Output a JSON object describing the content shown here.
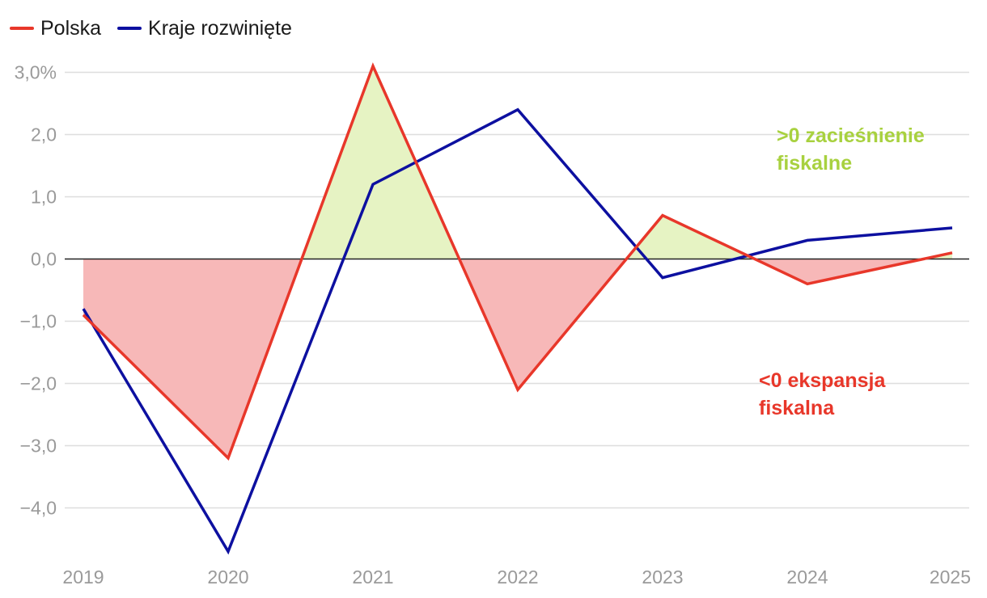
{
  "legend": [
    {
      "label": "Polska",
      "color": "#e8372a"
    },
    {
      "label": "Kraje rozwinięte",
      "color": "#0d10a0"
    }
  ],
  "chart_data": {
    "type": "line",
    "title": "",
    "xlabel": "",
    "ylabel": "",
    "x": [
      "2019",
      "2020",
      "2021",
      "2022",
      "2023",
      "2024",
      "2025"
    ],
    "series": [
      {
        "name": "Polska",
        "color": "#e8372a",
        "values": [
          -0.9,
          -3.2,
          3.1,
          -2.1,
          0.7,
          -0.4,
          0.1
        ]
      },
      {
        "name": "Kraje rozwinięte",
        "color": "#0d10a0",
        "values": [
          -0.8,
          -4.7,
          1.2,
          2.4,
          -0.3,
          0.3,
          0.5
        ]
      }
    ],
    "fill_between_zero_for": "Polska",
    "fill_colors": {
      "positive": "#e6f3c3",
      "negative": "#f7b8b8"
    },
    "ylim": [
      -4.8,
      3.1
    ],
    "yticks": [
      3,
      2,
      1,
      0,
      -1,
      -2,
      -3,
      -4
    ],
    "ytick_labels": [
      "3,0%",
      "2,0",
      "1,0",
      "0,0",
      "−1,0",
      "−2,0",
      "−3,0",
      "−4,0"
    ],
    "grid": true,
    "legend_position": "top-left",
    "annotations": [
      {
        "lines": [
          ">0 zacieśnienie",
          "fiskalne"
        ],
        "color": "#a8d13f"
      },
      {
        "lines": [
          "<0 ekspansja",
          "fiskalna"
        ],
        "color": "#e8372a"
      }
    ]
  }
}
